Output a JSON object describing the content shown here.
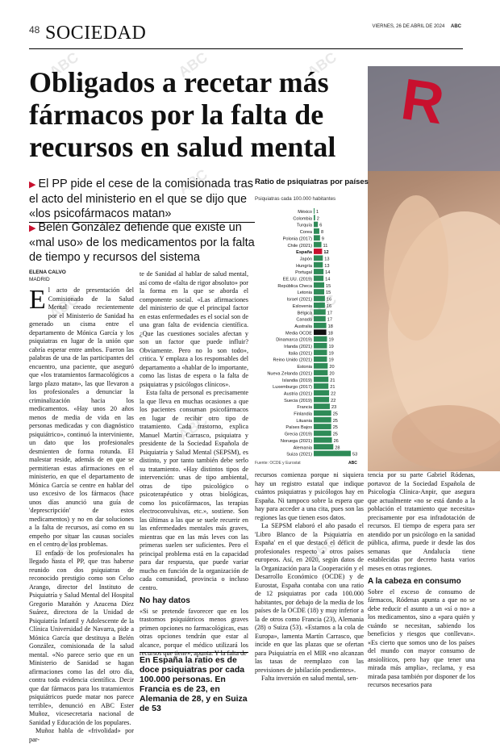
{
  "header": {
    "page_number": "48",
    "section": "SOCIEDAD",
    "dateline": "VIERNES, 26 DE ABRIL DE 2024",
    "masthead": "ABC"
  },
  "article": {
    "headline": "Obligados a recetar más fármacos por la falta de recursos en salud mental",
    "subheads": [
      "El PP pide el cese de la comisionada tras el acto del ministerio en el que se dijo que «los psicofármacos matan»",
      "Belén González defiende que existe un «mal uso» de los medicamentos por la falta de tiempo y recursos del sistema"
    ],
    "author": "ELENA CALVO",
    "city": "MADRID",
    "drop_cap": "E",
    "col1": [
      "l acto de presentación del Comisionado de la Salud Mental creado recientemente por el Ministerio de Sanidad ha generado un cisma entre el departamento de Mónica García y los psiquiatras en lugar de la unión que cabría esperar entre ambos. Fueron las palabras de una de las participantes del encuentro, una paciente, que aseguró que «los tratamientos farmacológicos a largo plazo matan», las que llevaron a los profesionales a denunciar la criminalización hacia los medicamentos. «Hay unos 20 años menos de media de vida en las personas medicadas y con diagnóstico psiquiátrico», continuó la interviniente, un dato que los profesionales desmienten de forma rotunda. El malestar reside, además de en que se permitieran estas afirmaciones en el ministerio, en que el departamento de Mónica García se centre en hablar del uso excesivo de los fármacos (hace unos días anunció una guía de 'deprescripción' de estos medicamentos) y no en dar soluciones a la falta de recursos, así como en su empeño por situar las causas sociales en el centro de los problemas.",
      "El enfado de los profesionales ha llegado hasta el PP, que tras haberse reunido con dos psiquiatras de reconocido prestigio como son Celso Arango, director del Instituto de Psiquiatría y Salud Mental del Hospital Gregorio Marañón y Azucena Díez Suárez, directora de la Unidad de Psiquiatría Infantil y Adolescente de la Clínica Universidad de Navarra, pide a Mónica García que destituya a Belén González, comisionada de la salud mental. «No parece serio que en un Ministerio de Sanidad se hagan afirmaciones como las del otro día, contra toda evidencia científica. Decir que dar fármacos para los tratamientos psiquiátricos puede matar nos parece terrible», denunció en ABC Ester Muñoz, vicesecretaria nacional de Sanidad y Educación de los populares.",
      "Muñoz habla de «frivolidad» por par-"
    ],
    "col2": [
      "te de Sanidad al hablar de salud mental, así como de «falta de rigor absoluto» por la forma en la que se aborda el componente social. «Las afirmaciones del ministerio de que el principal factor en estas enfermedades es el social son de una gran falta de evidencia científica. ¿Que las cuestiones sociales afectan y son un factor que puede influir? Obviamente. Pero no lo son todo», critica. Y emplaza a los responsables del departamento a «hablar de lo importante, como las listas de espera o la falta de psiquiatras y psicólogos clínicos».",
      "Esta falta de personal es precisamente la que lleva en muchas ocasiones a que los pacientes consuman psicofármacos en lugar de recibir otro tipo de tratamiento. Cada trastorno, explica Manuel Martín Carrasco, psiquiatra y presidente de la Sociedad Española de Psiquiatría y Salud Mental (SEPSM), es distinto, y por tanto también debe serlo su tratamiento. «Hay distintos tipos de intervención: unas de tipo ambiental, otras de tipo psicológico o psicoterapéutico y otras biológicas, como los psicofármacos, las terapias electroconvulsivas, etc.», sostiene. Son las últimas a las que se suele recurrir en las enfermedades mentales más graves, mientras que en las más leves con las primeras suelen ser suficientes. Pero el principal problema está en la capacidad para dar respuesta, que puede variar mucho en función de la organización de cada comunidad, provincia o incluso centro."
    ],
    "col2_heading": "No hay datos",
    "col2_after": [
      "«Si se pretende favorecer que en los trastornos psiquiátricos menos graves primen opciones no farmacológicas, esas otras opciones tendrán que estar al alcance, porque el médico utilizará los recursos que tiene», apunta. Y la falta de"
    ],
    "pull_quote": "En España la ratio es de doce psiquiatras por cada 100.000 personas. En Francia es de 23, en Alemania de 28, y en Suiza de 53",
    "col3": [
      "recursos comienza porque ni siquiera hay un registro estatal que indique cuántos psiquiatras y psicólogos hay en España. Ni tampoco sobre la espera que hay para acceder a una cita, pues son las regiones las que tienen esos datos.",
      "La SEPSM elaboró el año pasado el 'Libro Blanco de la Psiquiatría en España' en el que destacó el déficit de profesionales respecto a otros países europeos. Así, en 2020, según datos de la Organización para la Cooperación y el Desarrollo Económico (OCDE) y de Eurostat, España contaba con una ratio de 12 psiquiatras por cada 100.000 habitantes, por debajo de la media de los países de la OCDE (18) y muy inferior a la de otros como Francia (23), Alemania (28) o Suiza (53). «Estamos a la cola de Europa», lamenta Martín Carrasco, que incide en que las plazas que se ofertan para Psiquiatría en el MIR «no alcanzan las tasas de reemplazo con las previsiones de jubilación pendientes».",
      "Falta inversión en salud mental, sen-"
    ],
    "col4": [
      "tencia por su parte Gabriel Ródenas, portavoz de la Sociedad Española de Psicología Clínica-Anpir, que asegura que actualmente «no se está dando a la población el tratamiento que necesita» precisamente por esa infradotación de recursos. El tiempo de espera para ser atendido por un psicólogo en la sanidad pública, afirma, puede ir desde las dos semanas que Andalucía tiene establecidas por decreto hasta varios meses en otras regiones."
    ],
    "col4_heading": "A la cabeza en consumo",
    "col4_after": [
      "Sobre el exceso de consumo de fármacos, Ródenas apunta a que no se debe reducir el asunto a un «sí o no» a los medicamentos, sino a «para quién y cuándo se necesitan, sabiendo los beneficios y riesgos que conllevan». «Es cierto que somos uno de los países del mundo con mayor consumo de ansiolíticos, pero hay que tener una mirada más amplia», reclama, y esa mirada pasa también por disponer de los recursos necesarios para"
    ]
  },
  "watermark": "ABC",
  "chart_data": {
    "type": "bar",
    "title": "Ratio de psiquiatras por países",
    "subtitle": "Psiquiatras cada 100.000 habitantes",
    "source": "Fuente: OCDE y Eurostat",
    "logo": "ABC",
    "highlight_color": "#c8102e",
    "oecd_color": "#111111",
    "bar_color": "#2e8b57",
    "categories": [
      "México",
      "Colombia",
      "Turquía",
      "Corea",
      "Polonia (2017)",
      "Chile (2021)",
      "España",
      "Japón",
      "Hungría",
      "Portugal",
      "EE.UU. (2019)",
      "República Checa",
      "Letonia",
      "Israel (2021)",
      "Eslovenia",
      "Bélgica",
      "Canadá",
      "Australia",
      "Media OCDE",
      "Dinamarca (2019)",
      "Irlanda (2021)",
      "Italia (2021)",
      "Reino Unido (2021)",
      "Estonia",
      "Nueva Zelanda (2021)",
      "Islandia (2019)",
      "Luxemburgo (2017)",
      "Austria (2021)",
      "Suecia (2019)",
      "Francia",
      "Finlandia",
      "Lituania",
      "Países Bajos",
      "Grecia (2019)",
      "Noruega (2021)",
      "Alemania",
      "Suiza (2021)"
    ],
    "values": [
      1,
      2,
      6,
      8,
      9,
      11,
      12,
      13,
      13,
      14,
      14,
      15,
      15,
      16,
      16,
      17,
      17,
      18,
      18,
      19,
      19,
      19,
      19,
      20,
      20,
      21,
      21,
      22,
      22,
      23,
      25,
      25,
      25,
      25,
      26,
      28,
      53
    ],
    "highlight": "España",
    "oecd": "Media OCDE"
  }
}
